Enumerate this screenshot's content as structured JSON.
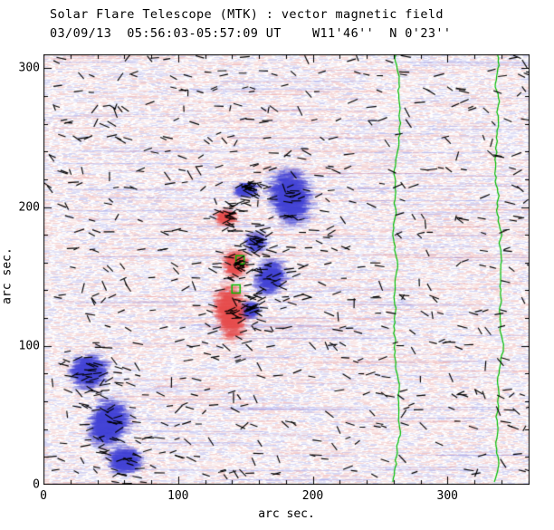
{
  "header": {
    "title": "Solar Flare Telescope (MTK) : vector magnetic field",
    "subtitle": "03/09/13  05:56:03-05:57:09 UT    W11'46''  N 0'23''"
  },
  "chart_data": {
    "type": "heatmap",
    "title": "Solar Flare Telescope (MTK) : vector magnetic field",
    "subtitle": "03/09/13  05:56:03-05:57:09 UT    W11'46''  N 0'23''",
    "xlabel": "arc sec.",
    "ylabel": "arc sec.",
    "xlim": [
      0,
      361
    ],
    "ylim": [
      0,
      310
    ],
    "xticks": [
      0,
      100,
      200,
      300
    ],
    "yticks": [
      0,
      100,
      200,
      300
    ],
    "minor_tick_step": 20,
    "grid": false,
    "legend": null,
    "colors": {
      "positive_polarity": "#e85050",
      "negative_polarity": "#4646d7",
      "noise_pink": "#e18282",
      "noise_blue": "#8282dc",
      "vector_segments": "#000000",
      "contour_green": "#00bb00",
      "axis": "#000000",
      "background": "#ffffff"
    },
    "features": {
      "negative_regions": [
        {
          "x": 33,
          "y": 82,
          "rx": 17,
          "ry": 18,
          "angle": 25,
          "label": "bottom-left blue plage upper lobe"
        },
        {
          "x": 48,
          "y": 45,
          "rx": 18,
          "ry": 25,
          "angle": 20,
          "label": "bottom-left blue plage middle lobe"
        },
        {
          "x": 60,
          "y": 18,
          "rx": 16,
          "ry": 14,
          "angle": 0,
          "label": "bottom-left blue plage lower lobe"
        },
        {
          "x": 183,
          "y": 208,
          "rx": 20,
          "ry": 28,
          "angle": -15,
          "label": "central-upper blue spot"
        },
        {
          "x": 150,
          "y": 213,
          "rx": 10,
          "ry": 8,
          "angle": 0,
          "label": "blue arm left of spot"
        },
        {
          "x": 168,
          "y": 150,
          "rx": 13,
          "ry": 18,
          "angle": 20,
          "label": "blue lane right of red plage"
        },
        {
          "x": 157,
          "y": 175,
          "rx": 8,
          "ry": 10,
          "angle": 0,
          "label": "blue patch between spots"
        },
        {
          "x": 152,
          "y": 126,
          "rx": 8,
          "ry": 9,
          "angle": 0,
          "label": "small lower blue patch"
        }
      ],
      "positive_regions": [
        {
          "x": 138,
          "y": 125,
          "rx": 13,
          "ry": 28,
          "angle": -8,
          "label": "main red plage"
        },
        {
          "x": 142,
          "y": 160,
          "rx": 10,
          "ry": 14,
          "angle": 0,
          "label": "red plage upper extension"
        },
        {
          "x": 135,
          "y": 193,
          "rx": 8,
          "ry": 9,
          "angle": 0,
          "label": "detached red patch"
        }
      ],
      "green_contour_x": [
        262,
        338
      ],
      "green_markers": [
        {
          "x": 146,
          "y": 162
        },
        {
          "x": 143,
          "y": 141
        }
      ],
      "vector_field": "short black segments sampled across field, denser near plage regions"
    }
  }
}
